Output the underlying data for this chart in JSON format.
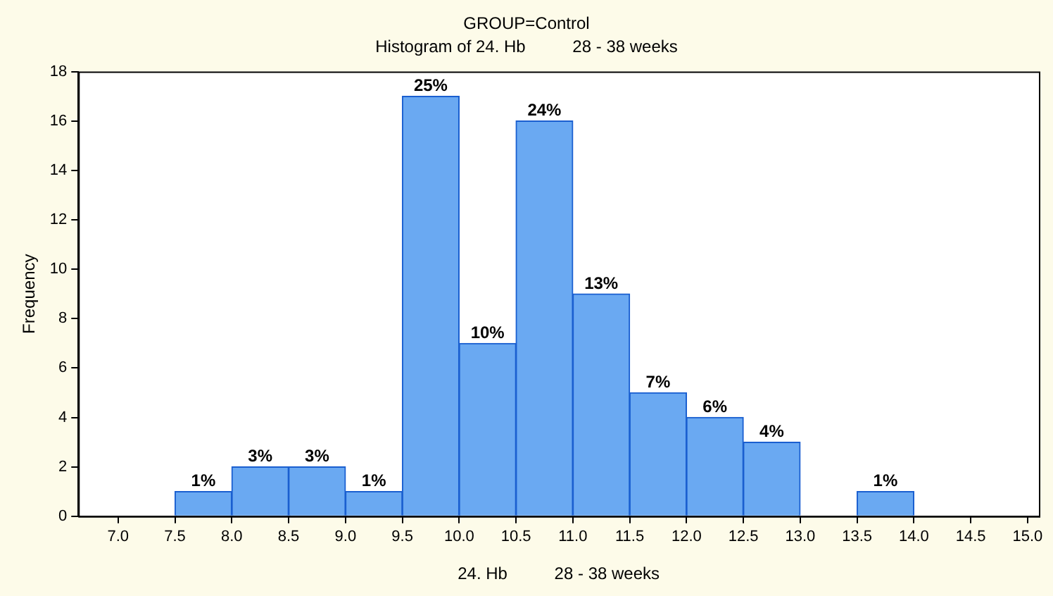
{
  "chart_data": {
    "type": "histogram",
    "title": "GROUP=Control",
    "subtitle": "Histogram of 24. Hb          28 - 38 weeks",
    "xlabel": "24. Hb          28 - 38 weeks",
    "ylabel": "Frequency",
    "bins": [
      7.0,
      7.5,
      8.0,
      8.5,
      9.0,
      9.5,
      10.0,
      10.5,
      11.0,
      11.5,
      12.0,
      12.5,
      13.0,
      13.5,
      14.0,
      14.5,
      15.0
    ],
    "values": [
      0,
      1,
      2,
      2,
      1,
      17,
      7,
      16,
      9,
      5,
      4,
      3,
      0,
      1,
      0,
      0
    ],
    "annotations": [
      {
        "text": "1%",
        "x": 7.75,
        "y": 1
      },
      {
        "text": "3%",
        "x": 8.25,
        "y": 2
      },
      {
        "text": "3%",
        "x": 8.75,
        "y": 2
      },
      {
        "text": "1%",
        "x": 9.25,
        "y": 1
      },
      {
        "text": "25%",
        "x": 9.75,
        "y": 17
      },
      {
        "text": "10%",
        "x": 10.25,
        "y": 7
      },
      {
        "text": "24%",
        "x": 10.75,
        "y": 16
      },
      {
        "text": "13%",
        "x": 11.25,
        "y": 9
      },
      {
        "text": "7%",
        "x": 11.75,
        "y": 5
      },
      {
        "text": "6%",
        "x": 12.25,
        "y": 4
      },
      {
        "text": "4%",
        "x": 12.75,
        "y": 3
      },
      {
        "text": "1%",
        "x": 13.75,
        "y": 1
      }
    ],
    "color": "#6aa9f2",
    "xlim": [
      6.65,
      15.1
    ],
    "xticks": [
      {
        "value": 7.0,
        "label": "7.0"
      },
      {
        "value": 7.5,
        "label": "7.5"
      },
      {
        "value": 8.0,
        "label": "8.0"
      },
      {
        "value": 8.5,
        "label": "8.5"
      },
      {
        "value": 9.0,
        "label": "9.0"
      },
      {
        "value": 9.5,
        "label": "9.5"
      },
      {
        "value": 10.0,
        "label": "10.0"
      },
      {
        "value": 10.5,
        "label": "10.5"
      },
      {
        "value": 11.0,
        "label": "11.0"
      },
      {
        "value": 11.5,
        "label": "11.5"
      },
      {
        "value": 12.0,
        "label": "12.0"
      },
      {
        "value": 12.5,
        "label": "12.5"
      },
      {
        "value": 13.0,
        "label": "13.0"
      },
      {
        "value": 13.5,
        "label": "13.5"
      },
      {
        "value": 14.0,
        "label": "14.0"
      },
      {
        "value": 14.5,
        "label": "14.5"
      },
      {
        "value": 15.0,
        "label": "15.0"
      }
    ],
    "ylim": [
      0,
      18
    ],
    "yticks": [
      0,
      2,
      4,
      6,
      8,
      10,
      12,
      14,
      16,
      18
    ],
    "grid": false,
    "legend": false
  }
}
